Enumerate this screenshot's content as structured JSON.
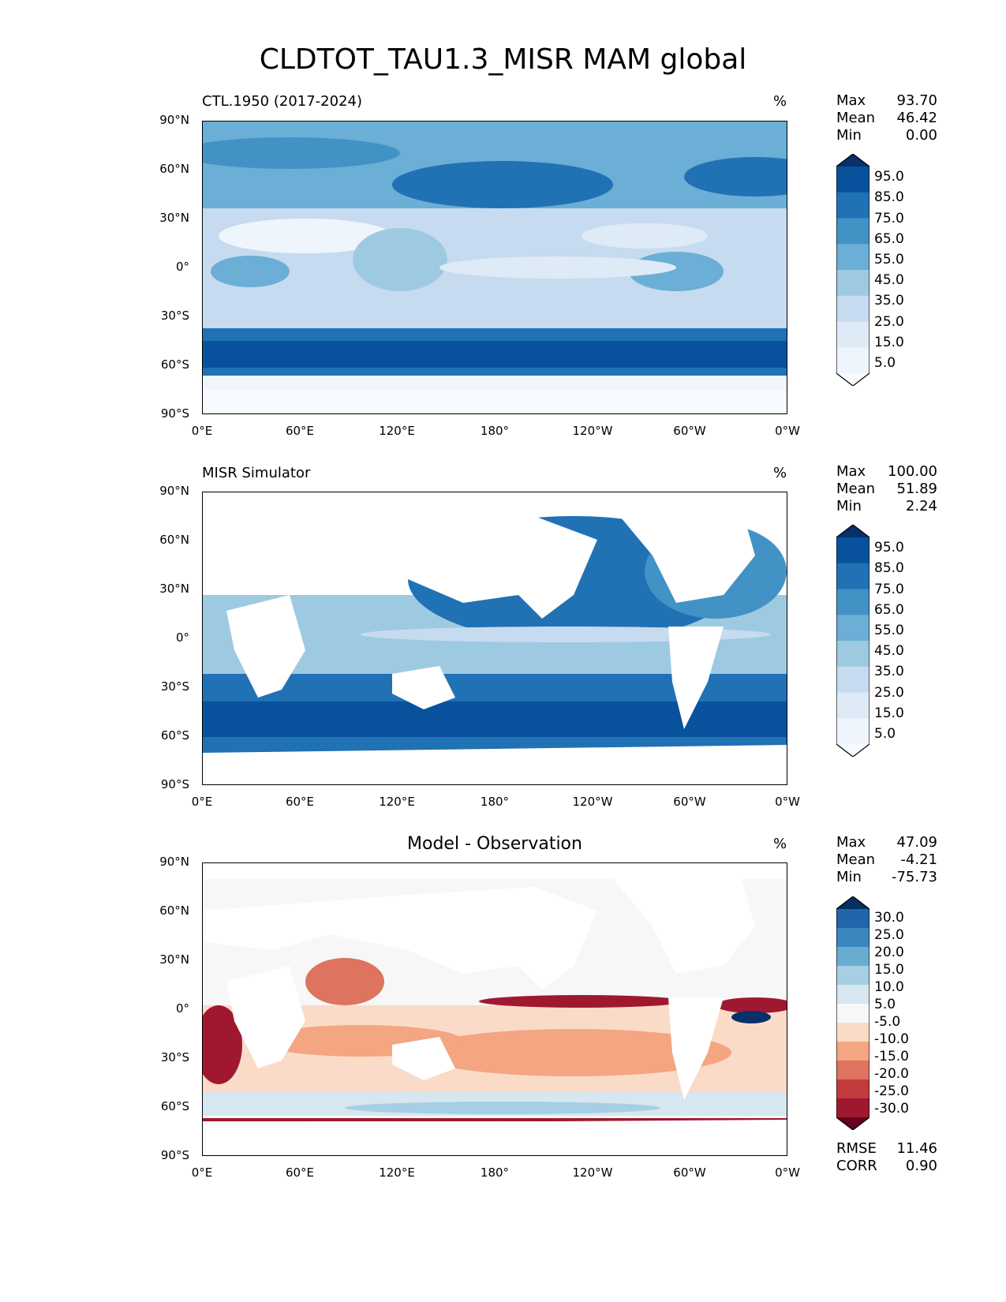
{
  "figure_title": "CLDTOT_TAU1.3_MISR MAM global",
  "x_ticks": [
    "0°E",
    "60°E",
    "120°E",
    "180°",
    "120°W",
    "60°W",
    "0°W"
  ],
  "y_ticks": [
    "90°N",
    "60°N",
    "30°N",
    "0°",
    "30°S",
    "60°S",
    "90°S"
  ],
  "panels": [
    {
      "title": "CTL.1950 (2017-2024)",
      "units": "%",
      "stats": {
        "max_label": "Max",
        "max": "93.70",
        "mean_label": "Mean",
        "mean": "46.42",
        "min_label": "Min",
        "min": "0.00"
      },
      "colorbar_labels": [
        "95.0",
        "85.0",
        "75.0",
        "65.0",
        "55.0",
        "45.0",
        "35.0",
        "25.0",
        "15.0",
        "5.0"
      ],
      "colorbar_colors": [
        "#08306b",
        "#08519c",
        "#2171b5",
        "#4292c6",
        "#6baed6",
        "#9ecae1",
        "#c6dbef",
        "#deebf7",
        "#eef5fc",
        "#f7fbff"
      ]
    },
    {
      "title": "MISR Simulator",
      "units": "%",
      "stats": {
        "max_label": "Max",
        "max": "100.00",
        "mean_label": "Mean",
        "mean": "51.89",
        "min_label": "Min",
        "min": "2.24"
      },
      "colorbar_labels": [
        "95.0",
        "85.0",
        "75.0",
        "65.0",
        "55.0",
        "45.0",
        "35.0",
        "25.0",
        "15.0",
        "5.0"
      ],
      "colorbar_colors": [
        "#08306b",
        "#08519c",
        "#2171b5",
        "#4292c6",
        "#6baed6",
        "#9ecae1",
        "#c6dbef",
        "#deebf7",
        "#eef5fc",
        "#f7fbff"
      ]
    },
    {
      "title": "Model - Observation",
      "units": "%",
      "stats": {
        "max_label": "Max",
        "max": "47.09",
        "mean_label": "Mean",
        "mean": "-4.21",
        "min_label": "Min",
        "min": "-75.73"
      },
      "colorbar_labels": [
        "30.0",
        "25.0",
        "20.0",
        "15.0",
        "10.0",
        "5.0",
        "-5.0",
        "-10.0",
        "-15.0",
        "-20.0",
        "-25.0",
        "-30.0"
      ],
      "colorbar_colors": [
        "#053061",
        "#2166ac",
        "#3a87c0",
        "#6aacd0",
        "#a6cfe3",
        "#d6e7f1",
        "#f7f7f7",
        "#fadbc8",
        "#f4a582",
        "#de7360",
        "#c23b3e",
        "#a01830",
        "#67001f"
      ],
      "metrics": {
        "rmse_label": "RMSE",
        "rmse": "11.46",
        "corr_label": "CORR",
        "corr": "0.90"
      }
    }
  ]
}
